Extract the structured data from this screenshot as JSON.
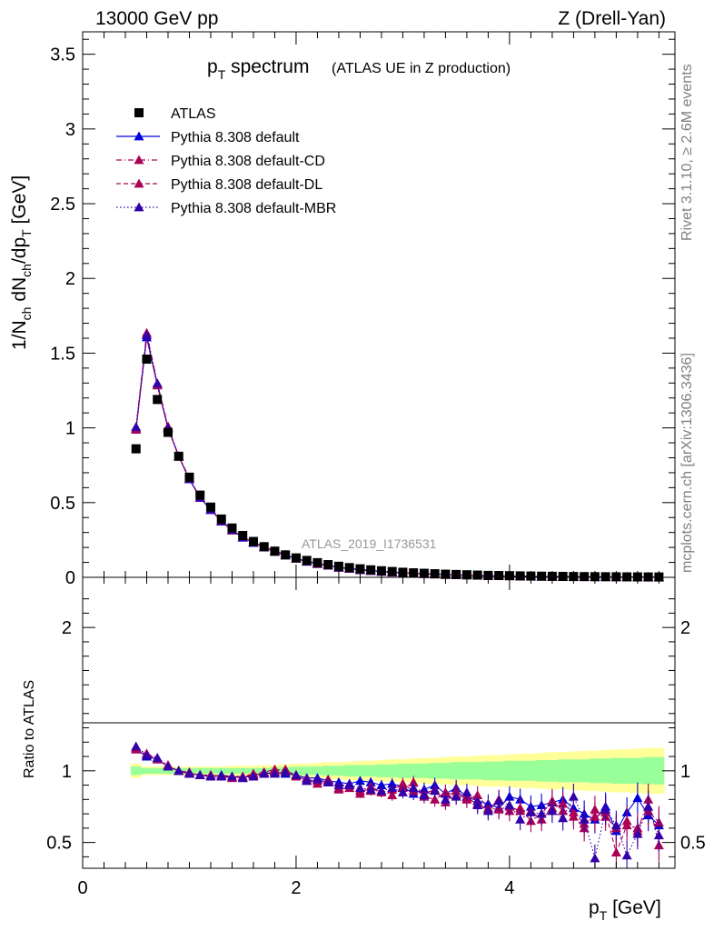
{
  "header": {
    "left": "13000 GeV pp",
    "right": "Z (Drell-Yan)"
  },
  "title": {
    "main": "p",
    "main_sub": "T",
    "main_rest": " spectrum",
    "small": "(ATLAS UE in Z production)"
  },
  "watermark": "ATLAS_2019_I1736531",
  "side_text": {
    "top": "Rivet 3.1.10, ≥ 2.6M events",
    "bottom": "mcplots.cern.ch [arXiv:1306.3436]"
  },
  "axes": {
    "ylabel_top": "1/N",
    "ylabel_top_sub1": "ch",
    "ylabel_top_mid": " dN",
    "ylabel_top_sub2": "ch",
    "ylabel_top_mid2": "/dp",
    "ylabel_top_sub3": "T",
    "ylabel_top_unit": " [GeV]",
    "ylabel_bottom": "Ratio to ATLAS",
    "xlabel": "p",
    "xlabel_sub": "T",
    "xlabel_unit": " [GeV]"
  },
  "legend": [
    {
      "label": "ATLAS",
      "style": "data"
    },
    {
      "label": "Pythia 8.308 default",
      "style": "solid",
      "color": "#0000dd"
    },
    {
      "label": "Pythia 8.308 default-CD",
      "style": "dashdot",
      "color": "#aa0055"
    },
    {
      "label": "Pythia 8.308 default-DL",
      "style": "dashed",
      "color": "#aa0055"
    },
    {
      "label": "Pythia 8.308 default-MBR",
      "style": "dotted",
      "color": "#3300aa"
    }
  ],
  "chart_data": {
    "type": "line",
    "x_range": [
      0,
      5.55
    ],
    "y_range_top": [
      0,
      3.65
    ],
    "y_range_ratio": [
      0.32,
      2.35
    ],
    "x_ticks": [
      0,
      2,
      4
    ],
    "y_ticks_top": [
      0,
      0.5,
      1,
      1.5,
      2,
      2.5,
      3,
      3.5
    ],
    "y_ticks_ratio": [
      0.5,
      1,
      2
    ],
    "series": [
      {
        "name": "ATLAS",
        "x": [
          0.5,
          0.6,
          0.7,
          0.8,
          0.9,
          1.0,
          1.1,
          1.2,
          1.3,
          1.4,
          1.5,
          1.6,
          1.7,
          1.8,
          1.9,
          2.0,
          2.1,
          2.2,
          2.3,
          2.4,
          2.5,
          2.6,
          2.7,
          2.8,
          2.9,
          3.0,
          3.1,
          3.2,
          3.3,
          3.4,
          3.5,
          3.6,
          3.7,
          3.8,
          3.9,
          4.0,
          4.1,
          4.2,
          4.3,
          4.4,
          4.5,
          4.6,
          4.7,
          4.8,
          4.9,
          5.0,
          5.1,
          5.2,
          5.3,
          5.4
        ],
        "y": [
          0.86,
          1.46,
          1.19,
          0.97,
          0.81,
          0.67,
          0.55,
          0.47,
          0.39,
          0.33,
          0.28,
          0.24,
          0.205,
          0.175,
          0.15,
          0.13,
          0.113,
          0.098,
          0.085,
          0.074,
          0.065,
          0.057,
          0.05,
          0.044,
          0.039,
          0.034,
          0.03,
          0.027,
          0.024,
          0.021,
          0.019,
          0.017,
          0.015,
          0.013,
          0.012,
          0.011,
          0.0095,
          0.0085,
          0.0076,
          0.0068,
          0.006,
          0.0054,
          0.0048,
          0.0043,
          0.0039,
          0.0035,
          0.0031,
          0.0028,
          0.0025,
          0.0023
        ]
      },
      {
        "name": "Pythia 8.308 default",
        "ratio": [
          1.15,
          1.1,
          1.08,
          1.03,
          1.0,
          0.98,
          0.97,
          0.96,
          0.97,
          0.96,
          0.95,
          0.97,
          0.98,
          0.99,
          0.98,
          0.97,
          0.95,
          0.95,
          0.93,
          0.92,
          0.91,
          0.93,
          0.92,
          0.9,
          0.91,
          0.89,
          0.84,
          0.87,
          0.9,
          0.84,
          0.88,
          0.82,
          0.79,
          0.77,
          0.74,
          0.82,
          0.8,
          0.75,
          0.76,
          0.78,
          0.8,
          0.74,
          0.7,
          0.66,
          0.75,
          0.58,
          0.71,
          0.81,
          0.69,
          0.62
        ]
      },
      {
        "name": "Pythia 8.308 default-CD",
        "ratio": [
          1.16,
          1.12,
          1.09,
          1.04,
          1.0,
          0.98,
          0.97,
          0.97,
          0.96,
          0.96,
          0.96,
          0.98,
          0.99,
          1.0,
          1.01,
          0.96,
          0.94,
          0.91,
          0.94,
          0.88,
          0.9,
          0.86,
          0.86,
          0.86,
          0.83,
          0.88,
          0.92,
          0.82,
          0.8,
          0.85,
          0.83,
          0.81,
          0.77,
          0.73,
          0.8,
          0.72,
          0.74,
          0.65,
          0.7,
          0.79,
          0.72,
          0.68,
          0.6,
          0.73,
          0.68,
          0.6,
          0.65,
          0.58,
          0.8,
          0.48
        ]
      },
      {
        "name": "Pythia 8.308 default-DL",
        "ratio": [
          1.15,
          1.11,
          1.08,
          1.03,
          1.0,
          0.99,
          0.97,
          0.97,
          0.96,
          0.95,
          0.96,
          0.97,
          0.99,
          1.01,
          1.0,
          0.97,
          0.93,
          0.93,
          0.92,
          0.87,
          0.88,
          0.84,
          0.89,
          0.85,
          0.87,
          0.91,
          0.86,
          0.84,
          0.87,
          0.78,
          0.86,
          0.8,
          0.83,
          0.74,
          0.73,
          0.75,
          0.72,
          0.72,
          0.66,
          0.74,
          0.77,
          0.71,
          0.63,
          0.68,
          0.71,
          0.43,
          0.62,
          0.6,
          0.72,
          0.64
        ]
      },
      {
        "name": "Pythia 8.308 default-MBR",
        "ratio": [
          1.17,
          1.11,
          1.09,
          1.03,
          1.0,
          0.98,
          0.97,
          0.96,
          0.96,
          0.96,
          0.95,
          0.96,
          0.98,
          0.98,
          0.99,
          0.97,
          0.93,
          0.94,
          0.92,
          0.9,
          0.9,
          0.88,
          0.87,
          0.86,
          0.88,
          0.85,
          0.88,
          0.83,
          0.86,
          0.8,
          0.82,
          0.85,
          0.76,
          0.72,
          0.79,
          0.76,
          0.66,
          0.71,
          0.7,
          0.72,
          0.67,
          0.82,
          0.66,
          0.39,
          0.73,
          0.62,
          0.41,
          0.56,
          0.75,
          0.55
        ]
      }
    ],
    "ratio_bands": {
      "inner_halfwidth": [
        0.03,
        0.02,
        0.02,
        0.02,
        0.02,
        0.02,
        0.02,
        0.02,
        0.02,
        0.02,
        0.02,
        0.02,
        0.02,
        0.025,
        0.025,
        0.03,
        0.03,
        0.03,
        0.035,
        0.035,
        0.04,
        0.04,
        0.04,
        0.045,
        0.045,
        0.05,
        0.05,
        0.05,
        0.055,
        0.055,
        0.06,
        0.06,
        0.06,
        0.065,
        0.065,
        0.07,
        0.07,
        0.07,
        0.075,
        0.075,
        0.08,
        0.08,
        0.08,
        0.085,
        0.085,
        0.09,
        0.09,
        0.09,
        0.095,
        0.095
      ],
      "outer_halfwidth": [
        0.05,
        0.03,
        0.03,
        0.03,
        0.03,
        0.03,
        0.03,
        0.03,
        0.03,
        0.035,
        0.035,
        0.035,
        0.04,
        0.04,
        0.045,
        0.05,
        0.05,
        0.055,
        0.06,
        0.06,
        0.065,
        0.07,
        0.07,
        0.075,
        0.08,
        0.08,
        0.085,
        0.09,
        0.09,
        0.095,
        0.1,
        0.1,
        0.105,
        0.11,
        0.11,
        0.115,
        0.12,
        0.12,
        0.125,
        0.13,
        0.13,
        0.135,
        0.14,
        0.14,
        0.145,
        0.15,
        0.15,
        0.155,
        0.16,
        0.16
      ]
    },
    "colors": {
      "band_inner": "#99ff99",
      "band_outer": "#ffff99"
    },
    "grid": false,
    "legend_placement": "top-left"
  }
}
